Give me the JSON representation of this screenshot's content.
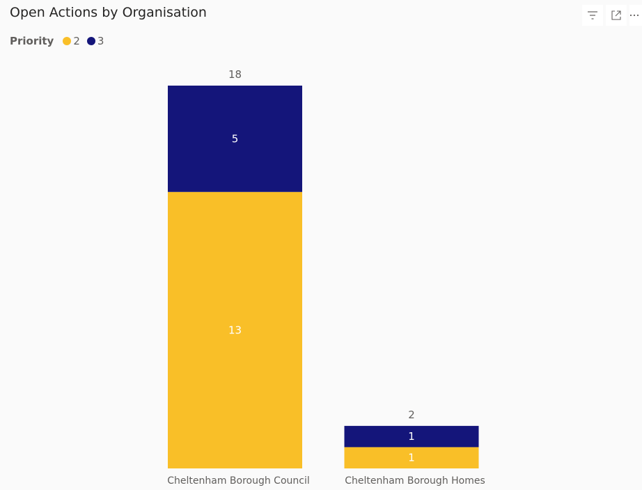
{
  "title": "Open Actions by Organisation",
  "legend": {
    "title": "Priority",
    "items": [
      {
        "label": "2",
        "color": "#F9BF28"
      },
      {
        "label": "3",
        "color": "#14157A"
      }
    ]
  },
  "toolbar": {
    "filter_icon": "filter-icon",
    "focus_icon": "focus-mode-icon",
    "more_icon": "more-options-icon"
  },
  "chart_data": {
    "type": "bar",
    "stacked": true,
    "title": "Open Actions by Organisation",
    "categories": [
      "Cheltenham Borough Council",
      "Cheltenham Borough Homes"
    ],
    "series": [
      {
        "name": "2",
        "values": [
          13,
          1
        ],
        "color": "#F9BF28"
      },
      {
        "name": "3",
        "values": [
          5,
          1
        ],
        "color": "#14157A"
      }
    ],
    "totals": [
      18,
      2
    ],
    "xlabel": "",
    "ylabel": "",
    "ylim": [
      0,
      18
    ],
    "grid": false,
    "legend_position": "top-left"
  }
}
